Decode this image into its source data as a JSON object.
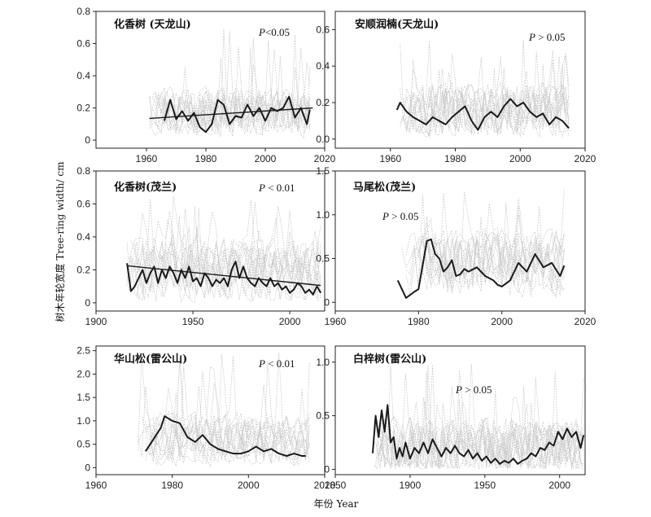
{
  "figure": {
    "xlabel": "年份 Year",
    "ylabel": "树木年轮宽度 Tree-ring width/ cm"
  },
  "chart_data": [
    {
      "type": "line",
      "title": "化香树 (天龙山)",
      "pvalue": {
        "prefix": "P",
        "text": "<0.05"
      },
      "xlim": [
        1943,
        2020
      ],
      "ylim": [
        -0.05,
        0.8
      ],
      "xticks": [
        1960,
        1980,
        2000,
        2020
      ],
      "yticks": [
        0,
        0.2,
        0.4,
        0.6,
        0.8
      ],
      "xtick_labels": [
        "1960",
        "1980",
        "2000",
        "2020"
      ],
      "ytick_labels": [
        "0",
        "0.2",
        "0.4",
        "0.6",
        "0.8"
      ],
      "grey": {
        "start": 1961,
        "end": 2015,
        "center": 0.17,
        "amp": 0.13,
        "floor": 0.0,
        "spike": 0.7
      },
      "trend": {
        "x": [
          1961,
          2016
        ],
        "y": [
          0.135,
          0.2
        ]
      },
      "series": [
        {
          "x": [
            1966,
            1968,
            1970,
            1972,
            1974,
            1976,
            1978,
            1980,
            1982,
            1984,
            1986,
            1988,
            1990,
            1992,
            1994,
            1996,
            1998,
            2000,
            2002,
            2004,
            2006,
            2008,
            2010,
            2012,
            2014,
            2015
          ],
          "values": [
            0.12,
            0.25,
            0.13,
            0.18,
            0.12,
            0.17,
            0.08,
            0.05,
            0.1,
            0.25,
            0.22,
            0.1,
            0.15,
            0.14,
            0.22,
            0.15,
            0.2,
            0.12,
            0.2,
            0.18,
            0.2,
            0.27,
            0.14,
            0.2,
            0.1,
            0.19
          ]
        }
      ]
    },
    {
      "type": "line",
      "title": "安顺润楠(天龙山)",
      "pvalue": {
        "prefix": "P",
        "text": " > 0.05"
      },
      "xlim": [
        1943,
        2020
      ],
      "ylim": [
        -0.05,
        0.7
      ],
      "xticks": [
        1960,
        1980,
        2000,
        2020
      ],
      "yticks": [
        0,
        0.2,
        0.4,
        0.6
      ],
      "xtick_labels": [
        "1960",
        "1980",
        "2000",
        "2020"
      ],
      "ytick_labels": [
        "0.0",
        "0.2",
        "0.4",
        "0.6"
      ],
      "grey": {
        "start": 1962,
        "end": 2015,
        "center": 0.16,
        "amp": 0.13,
        "floor": 0.0,
        "spike": 0.55
      },
      "series": [
        {
          "x": [
            1962,
            1963,
            1965,
            1967,
            1969,
            1971,
            1973,
            1975,
            1977,
            1979,
            1981,
            1983,
            1985,
            1987,
            1989,
            1991,
            1993,
            1995,
            1997,
            1999,
            2001,
            2003,
            2005,
            2007,
            2009,
            2011,
            2013,
            2015
          ],
          "values": [
            0.16,
            0.2,
            0.15,
            0.12,
            0.1,
            0.08,
            0.12,
            0.1,
            0.08,
            0.12,
            0.15,
            0.18,
            0.1,
            0.05,
            0.12,
            0.15,
            0.12,
            0.18,
            0.22,
            0.18,
            0.2,
            0.15,
            0.12,
            0.14,
            0.08,
            0.12,
            0.1,
            0.06
          ]
        }
      ]
    },
    {
      "type": "line",
      "title": "化香树(茂兰)",
      "pvalue": {
        "prefix": "P",
        "text": " < 0.01"
      },
      "xlim": [
        1900,
        2018
      ],
      "ylim": [
        -0.05,
        0.8
      ],
      "xticks": [
        1900,
        1950,
        2000
      ],
      "yticks": [
        0,
        0.2,
        0.4,
        0.6,
        0.8
      ],
      "xtick_labels": [
        "1900",
        "1950",
        "2000"
      ],
      "ytick_labels": [
        "0",
        "0.2",
        "0.4",
        "0.6",
        "0.8"
      ],
      "grey": {
        "start": 1916,
        "end": 2016,
        "center": 0.2,
        "amp": 0.18,
        "floor": 0.0,
        "spike": 0.65
      },
      "trend": {
        "x": [
          1916,
          2016
        ],
        "y": [
          0.225,
          0.105
        ]
      },
      "series": [
        {
          "x": [
            1916,
            1918,
            1920,
            1922,
            1924,
            1926,
            1928,
            1930,
            1932,
            1934,
            1936,
            1938,
            1940,
            1942,
            1944,
            1946,
            1948,
            1950,
            1952,
            1954,
            1956,
            1958,
            1960,
            1962,
            1964,
            1966,
            1968,
            1970,
            1972,
            1974,
            1976,
            1978,
            1980,
            1982,
            1984,
            1986,
            1988,
            1990,
            1992,
            1994,
            1996,
            1998,
            2000,
            2002,
            2004,
            2006,
            2008,
            2010,
            2012,
            2014,
            2016
          ],
          "values": [
            0.24,
            0.07,
            0.1,
            0.15,
            0.2,
            0.12,
            0.18,
            0.22,
            0.12,
            0.2,
            0.15,
            0.22,
            0.18,
            0.12,
            0.2,
            0.15,
            0.22,
            0.13,
            0.15,
            0.1,
            0.18,
            0.15,
            0.1,
            0.14,
            0.12,
            0.15,
            0.1,
            0.2,
            0.25,
            0.15,
            0.22,
            0.15,
            0.12,
            0.1,
            0.15,
            0.12,
            0.1,
            0.15,
            0.1,
            0.12,
            0.08,
            0.1,
            0.06,
            0.08,
            0.12,
            0.1,
            0.06,
            0.08,
            0.05,
            0.1,
            0.06
          ]
        }
      ]
    },
    {
      "type": "line",
      "title": "马尾松(茂兰)",
      "pvalue": {
        "prefix": "P",
        "text": " > 0.05"
      },
      "xlim": [
        1960,
        2020
      ],
      "ylim": [
        -0.1,
        1.5
      ],
      "xticks": [
        1960,
        1980,
        2000,
        2020
      ],
      "yticks": [
        0,
        0.5,
        1.0,
        1.5
      ],
      "xtick_labels": [
        "1960",
        "1980",
        "2000",
        "2020"
      ],
      "ytick_labels": [
        "0",
        "0.5",
        "1.0",
        "1.5"
      ],
      "grey": {
        "start": 1976,
        "end": 2015,
        "center": 0.45,
        "amp": 0.35,
        "floor": 0.05,
        "spike": 1.3
      },
      "series": [
        {
          "x": [
            1975,
            1977,
            1979,
            1980,
            1982,
            1983,
            1984,
            1985,
            1986,
            1987,
            1988,
            1989,
            1990,
            1991,
            1992,
            1994,
            1996,
            1998,
            1999,
            2000,
            2002,
            2004,
            2006,
            2008,
            2010,
            2012,
            2014,
            2015
          ],
          "values": [
            0.25,
            0.05,
            0.12,
            0.15,
            0.7,
            0.72,
            0.55,
            0.5,
            0.35,
            0.4,
            0.48,
            0.3,
            0.32,
            0.38,
            0.35,
            0.4,
            0.3,
            0.25,
            0.2,
            0.18,
            0.25,
            0.45,
            0.35,
            0.55,
            0.4,
            0.45,
            0.3,
            0.42
          ]
        }
      ]
    },
    {
      "type": "line",
      "title": "华山松(雷公山)",
      "pvalue": {
        "prefix": "P",
        "text": " < 0.01"
      },
      "xlim": [
        1960,
        2020
      ],
      "ylim": [
        -0.15,
        2.6
      ],
      "xticks": [
        1960,
        1980,
        2000,
        2020
      ],
      "yticks": [
        0,
        0.5,
        1.0,
        1.5,
        2.0,
        2.5
      ],
      "xtick_labels": [
        "1960",
        "1980",
        "2000",
        "2020"
      ],
      "ytick_labels": [
        "0",
        "0.5",
        "1.0",
        "1.5",
        "2.0",
        "2.5"
      ],
      "grey": {
        "start": 1971,
        "end": 2016,
        "center": 0.6,
        "amp": 0.5,
        "floor": 0.0,
        "spike": 2.5
      },
      "series": [
        {
          "x": [
            1973,
            1975,
            1977,
            1978,
            1980,
            1982,
            1984,
            1986,
            1988,
            1990,
            1992,
            1994,
            1996,
            1998,
            2000,
            2002,
            2004,
            2006,
            2008,
            2010,
            2012,
            2014,
            2015
          ],
          "values": [
            0.35,
            0.6,
            0.85,
            1.1,
            1.0,
            0.95,
            0.65,
            0.55,
            0.7,
            0.5,
            0.4,
            0.35,
            0.3,
            0.3,
            0.35,
            0.45,
            0.35,
            0.4,
            0.3,
            0.25,
            0.3,
            0.25,
            0.25
          ]
        }
      ]
    },
    {
      "type": "line",
      "title": "白梓树(雷公山)",
      "pvalue": {
        "prefix": "P",
        "text": " > 0.05"
      },
      "xlim": [
        1850,
        2017
      ],
      "ylim": [
        -0.05,
        1.15
      ],
      "xticks": [
        1850,
        1900,
        1950,
        2000
      ],
      "yticks": [
        0,
        0.5,
        1.0
      ],
      "xtick_labels": [
        "1850",
        "1900",
        "1950",
        "2000"
      ],
      "ytick_labels": [
        "0",
        "0.5",
        "1.0"
      ],
      "grey": {
        "start": 1875,
        "end": 2016,
        "center": 0.2,
        "amp": 0.25,
        "floor": 0.0,
        "spike": 1.0
      },
      "series": [
        {
          "x": [
            1875,
            1877,
            1879,
            1881,
            1883,
            1885,
            1887,
            1889,
            1891,
            1893,
            1895,
            1897,
            1900,
            1903,
            1906,
            1909,
            1912,
            1915,
            1918,
            1921,
            1924,
            1927,
            1930,
            1933,
            1936,
            1939,
            1942,
            1945,
            1948,
            1951,
            1954,
            1957,
            1960,
            1963,
            1966,
            1969,
            1972,
            1975,
            1978,
            1981,
            1984,
            1987,
            1990,
            1993,
            1996,
            1999,
            2002,
            2005,
            2008,
            2011,
            2014,
            2016
          ],
          "values": [
            0.15,
            0.5,
            0.3,
            0.55,
            0.35,
            0.6,
            0.25,
            0.3,
            0.1,
            0.2,
            0.12,
            0.25,
            0.1,
            0.2,
            0.15,
            0.25,
            0.15,
            0.28,
            0.2,
            0.12,
            0.2,
            0.15,
            0.22,
            0.15,
            0.12,
            0.18,
            0.1,
            0.15,
            0.08,
            0.12,
            0.06,
            0.1,
            0.05,
            0.08,
            0.06,
            0.1,
            0.05,
            0.08,
            0.1,
            0.15,
            0.12,
            0.2,
            0.18,
            0.25,
            0.22,
            0.35,
            0.28,
            0.38,
            0.3,
            0.35,
            0.2,
            0.32
          ]
        }
      ]
    }
  ]
}
